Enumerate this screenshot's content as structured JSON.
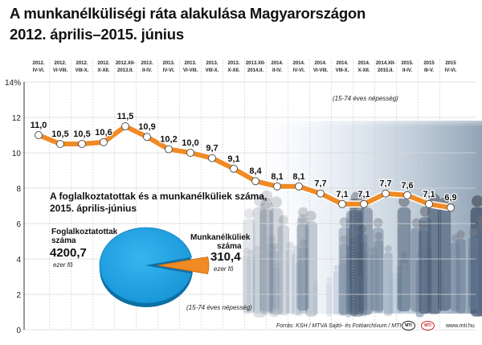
{
  "title_line1": "A munkanélküliségi ráta alakulása Magyarországon",
  "title_line2": "2012. április–2015. június",
  "population_note": "(15-74 éves népesség)",
  "chart_data": [
    {
      "type": "line",
      "title": "A munkanélküliségi ráta alakulása Magyarországon, 2012. április–2015. június",
      "ylabel": "%",
      "ylim": [
        0,
        14
      ],
      "yticks": [
        0,
        2,
        4,
        6,
        8,
        10,
        12,
        14
      ],
      "ytick_labels": [
        "0",
        "2",
        "4",
        "6",
        "8",
        "10",
        "12",
        "14%"
      ],
      "grid": true,
      "categories": [
        [
          "2012.",
          "IV-VI."
        ],
        [
          "2012.",
          "VI-VIII."
        ],
        [
          "2012.",
          "VIII-X."
        ],
        [
          "2012.",
          "X-XII."
        ],
        [
          "2012.XII-",
          "2013.II."
        ],
        [
          "2013.",
          "II-IV."
        ],
        [
          "2013.",
          "IV-VI."
        ],
        [
          "2013.",
          "VI-VIII."
        ],
        [
          "2013.",
          "VIII-X."
        ],
        [
          "2013.",
          "X-XII."
        ],
        [
          "2013.XII-",
          "2014.II."
        ],
        [
          "2014.",
          "II-IV."
        ],
        [
          "2014.",
          "IV-VI."
        ],
        [
          "2014.",
          "VI-VIII."
        ],
        [
          "2014.",
          "VIII-X."
        ],
        [
          "2014.",
          "X-XII."
        ],
        [
          "2014.XII-",
          "2015.II."
        ],
        [
          "2015.",
          "II-IV."
        ],
        [
          "2015",
          "III-V."
        ],
        [
          "2015",
          "IV-VI."
        ]
      ],
      "values": [
        11.0,
        10.5,
        10.5,
        10.6,
        11.5,
        10.9,
        10.2,
        10.0,
        9.7,
        9.1,
        8.4,
        8.1,
        8.1,
        7.7,
        7.1,
        7.1,
        7.7,
        7.6,
        7.1,
        6.9
      ],
      "value_labels": [
        "11,0",
        "10,5",
        "10,5",
        "10,6",
        "11,5",
        "10,9",
        "10,2",
        "10,0",
        "9,7",
        "9,1",
        "8,4",
        "8,1",
        "8,1",
        "7,7",
        "7,1",
        "7,1",
        "7,7",
        "7,6",
        "7,1",
        "6,9"
      ],
      "line_color": "#f08a24",
      "marker_fill": "#ffffff"
    },
    {
      "type": "pie",
      "title": "A foglalkoztatottak és a munkanélküliek száma, 2015. április-június",
      "subtitle_line1": "A foglalkoztatottak és a munkanélküliek száma,",
      "subtitle_line2": "2015. április-június",
      "slices": [
        {
          "name_line1": "Foglalkoztatottak",
          "name_line2": "száma",
          "value": 4200.7,
          "value_label": "4200,7",
          "unit": "ezer fő",
          "color": "#1aa3e6"
        },
        {
          "name_line1": "Munkanélküliek",
          "name_line2": "száma",
          "value": 310.4,
          "value_label": "310,4",
          "unit": "ezer fő",
          "color": "#f08a24"
        }
      ]
    }
  ],
  "footer": {
    "source": "Forrás: KSH / MTVA Sajtó- és Fotóarchívum / MTI",
    "logo1": "MTI",
    "logo2": "MTI",
    "site": "www.mti.hu"
  },
  "colors": {
    "axis": "#333333",
    "grid": "#d9d9d9",
    "line": "#f08a24",
    "pie_blue": "#1aa3e6",
    "pie_orange": "#f08a24"
  }
}
